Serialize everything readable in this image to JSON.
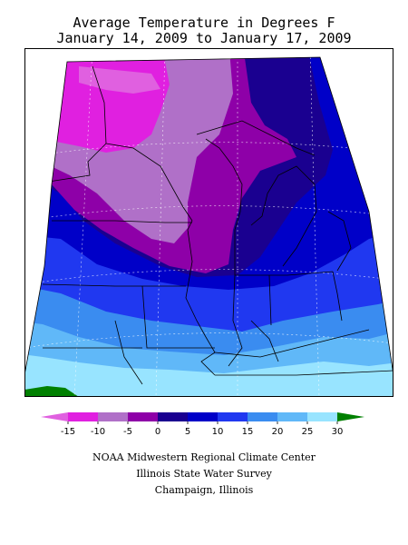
{
  "title": {
    "line1": "Average Temperature in Degrees F",
    "line2": "January 14, 2009 to January 17, 2009"
  },
  "legend": {
    "ticks": [
      "-15",
      "-10",
      "-5",
      "0",
      "5",
      "10",
      "15",
      "20",
      "25",
      "30"
    ],
    "bins": [
      {
        "label": "< -15",
        "color": "#e060e0"
      },
      {
        "label": "-15 to -10",
        "color": "#e020e0"
      },
      {
        "label": "-10 to -5",
        "color": "#b070c8"
      },
      {
        "label": "-5 to 0",
        "color": "#8e00a8"
      },
      {
        "label": "0 to 5",
        "color": "#1a0090"
      },
      {
        "label": "5 to 10",
        "color": "#0000c8"
      },
      {
        "label": "10 to 15",
        "color": "#2038f0"
      },
      {
        "label": "15 to 20",
        "color": "#3a8cf0"
      },
      {
        "label": "20 to 25",
        "color": "#60b8f8"
      },
      {
        "label": "25 to 30",
        "color": "#98e4ff"
      },
      {
        "label": "> 30",
        "color": "#008000"
      }
    ]
  },
  "credits": {
    "line1": "NOAA Midwestern Regional Climate Center",
    "line2": "Illinois State Water Survey",
    "line3": "Champaign, Illinois"
  }
}
